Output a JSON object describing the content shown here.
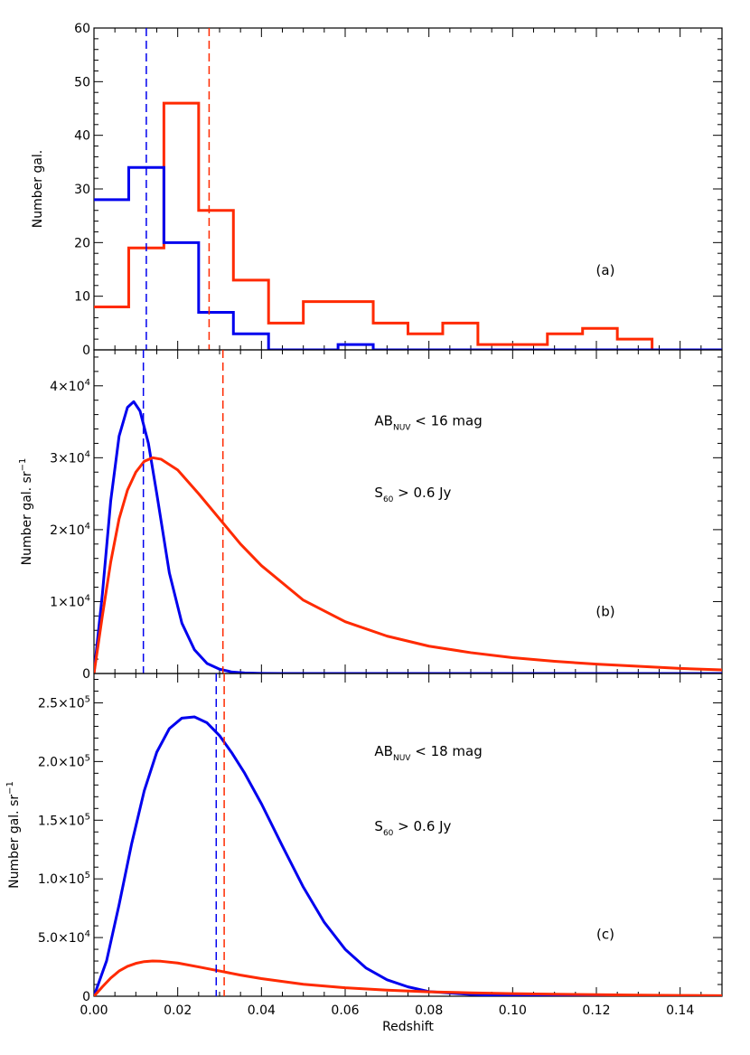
{
  "chart_data": [
    {
      "panel": "a",
      "type": "histogram",
      "ylabel": "Number gal.",
      "panel_label": "(a)",
      "ylim": [
        0,
        60
      ],
      "xlim": [
        0,
        0.15
      ],
      "yticks": [
        {
          "value": 0,
          "label": "0"
        },
        {
          "value": 10,
          "label": "10"
        },
        {
          "value": 20,
          "label": "20"
        },
        {
          "value": 30,
          "label": "30"
        },
        {
          "value": 40,
          "label": "40"
        },
        {
          "value": 50,
          "label": "50"
        },
        {
          "value": 60,
          "label": "60"
        }
      ],
      "bin_edges": [
        0.0,
        0.0083,
        0.0167,
        0.025,
        0.0333,
        0.0417,
        0.05,
        0.0583,
        0.0667,
        0.075,
        0.0833,
        0.0917,
        0.1,
        0.1083,
        0.1167,
        0.125,
        0.1333,
        0.1417,
        0.15
      ],
      "series": [
        {
          "color": "#ff2a00",
          "counts": [
            8,
            19,
            46,
            26,
            13,
            5,
            9,
            9,
            5,
            3,
            5,
            1,
            1,
            3,
            4,
            2,
            0,
            0
          ]
        },
        {
          "color": "#0000ee",
          "counts": [
            28,
            34,
            20,
            7,
            3,
            0,
            0,
            1,
            0,
            0,
            0,
            0,
            0,
            0,
            0,
            0,
            0,
            0
          ]
        }
      ],
      "vlines": [
        {
          "x": 0.0125,
          "color": "#0000ee"
        },
        {
          "x": 0.0275,
          "color": "#ff2a00"
        }
      ]
    },
    {
      "panel": "b",
      "type": "line",
      "ylabel": "Number gal. sr",
      "ylabel_sup": "−1",
      "panel_label": "(b)",
      "ylim": [
        0,
        45000
      ],
      "xlim": [
        0,
        0.15
      ],
      "yticks": [
        {
          "value": 0,
          "label": "0"
        },
        {
          "value": 10000,
          "mant": "1×10",
          "exp": "4"
        },
        {
          "value": 20000,
          "mant": "2×10",
          "exp": "4"
        },
        {
          "value": 30000,
          "mant": "3×10",
          "exp": "4"
        },
        {
          "value": 40000,
          "mant": "4×10",
          "exp": "4"
        }
      ],
      "annotations": [
        {
          "x": 0.067,
          "y": 34500,
          "main": "AB",
          "sub": "NUV",
          "rest": " < 16 mag"
        },
        {
          "x": 0.067,
          "y": 24500,
          "main": "S",
          "sub": "60",
          "rest": " > 0.6 Jy"
        }
      ],
      "series": [
        {
          "color": "#0000ee",
          "x": [
            0,
            0.002,
            0.004,
            0.006,
            0.008,
            0.0095,
            0.011,
            0.013,
            0.015,
            0.018,
            0.021,
            0.024,
            0.027,
            0.03,
            0.033,
            0.036,
            0.04,
            0.045,
            0.05,
            0.06,
            0.08,
            0.1,
            0.12,
            0.15
          ],
          "y": [
            0,
            11000,
            24000,
            33000,
            37000,
            37800,
            36500,
            32000,
            25000,
            14000,
            7000,
            3300,
            1400,
            600,
            200,
            80,
            20,
            5,
            0,
            0,
            0,
            0,
            0,
            0
          ]
        },
        {
          "color": "#ff2a00",
          "x": [
            0,
            0.002,
            0.004,
            0.006,
            0.008,
            0.01,
            0.012,
            0.014,
            0.016,
            0.02,
            0.025,
            0.03,
            0.035,
            0.04,
            0.05,
            0.06,
            0.07,
            0.08,
            0.09,
            0.1,
            0.11,
            0.12,
            0.13,
            0.14,
            0.15
          ],
          "y": [
            0,
            8000,
            15500,
            21500,
            25500,
            28000,
            29500,
            30000,
            29800,
            28300,
            25000,
            21500,
            18000,
            15000,
            10200,
            7200,
            5200,
            3800,
            2900,
            2200,
            1700,
            1300,
            1000,
            700,
            500
          ]
        }
      ],
      "vlines": [
        {
          "x": 0.0118,
          "color": "#0000ee"
        },
        {
          "x": 0.0308,
          "color": "#ff2a00"
        }
      ]
    },
    {
      "panel": "c",
      "type": "line",
      "ylabel": "Number gal. sr",
      "ylabel_sup": "−1",
      "xlabel": "Redshift",
      "panel_label": "(c)",
      "ylim": [
        0,
        275000
      ],
      "xlim": [
        0,
        0.15
      ],
      "yticks": [
        {
          "value": 0,
          "label": "0"
        },
        {
          "value": 50000,
          "mant": "5.0×10",
          "exp": "4"
        },
        {
          "value": 100000,
          "mant": "1.0×10",
          "exp": "5"
        },
        {
          "value": 150000,
          "mant": "1.5×10",
          "exp": "5"
        },
        {
          "value": 200000,
          "mant": "2.0×10",
          "exp": "5"
        },
        {
          "value": 250000,
          "mant": "2.5×10",
          "exp": "5"
        }
      ],
      "xticks": [
        {
          "value": 0,
          "label": "0.00"
        },
        {
          "value": 0.02,
          "label": "0.02"
        },
        {
          "value": 0.04,
          "label": "0.04"
        },
        {
          "value": 0.06,
          "label": "0.06"
        },
        {
          "value": 0.08,
          "label": "0.08"
        },
        {
          "value": 0.1,
          "label": "0.10"
        },
        {
          "value": 0.12,
          "label": "0.12"
        },
        {
          "value": 0.14,
          "label": "0.14"
        }
      ],
      "annotations": [
        {
          "x": 0.067,
          "y": 205000,
          "main": "AB",
          "sub": "NUV",
          "rest": " < 18 mag"
        },
        {
          "x": 0.067,
          "y": 141000,
          "main": "S",
          "sub": "60",
          "rest": " > 0.6 Jy"
        }
      ],
      "series": [
        {
          "color": "#0000ee",
          "x": [
            0,
            0.003,
            0.006,
            0.009,
            0.012,
            0.015,
            0.018,
            0.021,
            0.024,
            0.027,
            0.03,
            0.033,
            0.036,
            0.04,
            0.045,
            0.05,
            0.055,
            0.06,
            0.065,
            0.07,
            0.075,
            0.08,
            0.09,
            0.1,
            0.11,
            0.12,
            0.15
          ],
          "y": [
            0,
            30000,
            78000,
            130000,
            175000,
            208000,
            228000,
            237000,
            238000,
            233000,
            222000,
            207000,
            190000,
            164000,
            128000,
            93000,
            63000,
            40000,
            24000,
            14000,
            8000,
            4000,
            1500,
            500,
            200,
            50,
            0
          ]
        },
        {
          "color": "#ff2a00",
          "x": [
            0,
            0.002,
            0.004,
            0.006,
            0.008,
            0.01,
            0.012,
            0.014,
            0.016,
            0.02,
            0.025,
            0.03,
            0.035,
            0.04,
            0.05,
            0.06,
            0.07,
            0.08,
            0.09,
            0.1,
            0.11,
            0.12,
            0.13,
            0.14,
            0.15
          ],
          "y": [
            0,
            8000,
            15500,
            21500,
            25500,
            28000,
            29500,
            30000,
            29800,
            28300,
            25000,
            21500,
            18000,
            15000,
            10200,
            7200,
            5200,
            3800,
            2900,
            2200,
            1700,
            1300,
            1000,
            700,
            500
          ]
        }
      ],
      "vlines": [
        {
          "x": 0.0292,
          "color": "#0000ee"
        },
        {
          "x": 0.0311,
          "color": "#ff2a00"
        }
      ]
    }
  ]
}
